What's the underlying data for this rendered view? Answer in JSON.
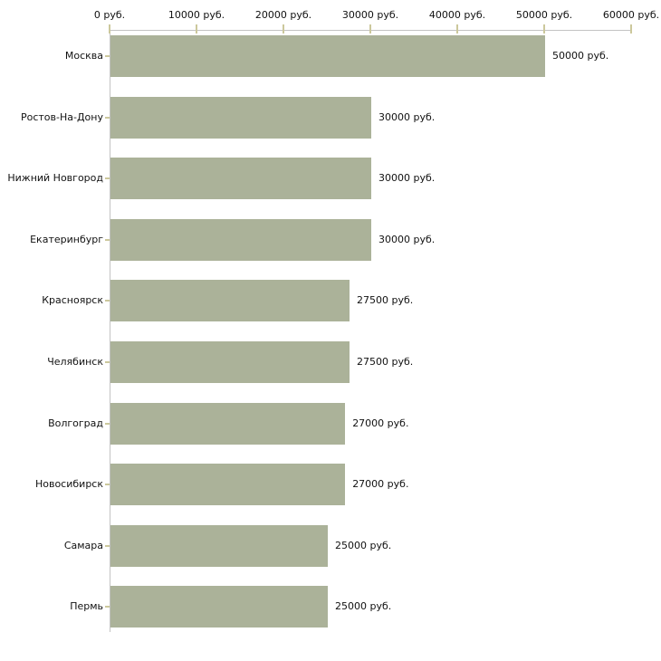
{
  "chart_data": {
    "type": "bar",
    "orientation": "horizontal",
    "title": "",
    "unit": "руб.",
    "categories": [
      "Москва",
      "Ростов-На-Дону",
      "Нижний Новгород",
      "Екатеринбург",
      "Красноярск",
      "Челябинск",
      "Волгоград",
      "Новосибирск",
      "Самара",
      "Пермь"
    ],
    "values": [
      50000,
      30000,
      30000,
      30000,
      27500,
      27500,
      27000,
      27000,
      25000,
      25000
    ],
    "value_labels": [
      "50000 руб.",
      "30000 руб.",
      "30000 руб.",
      "30000 руб.",
      "27500 руб.",
      "27500 руб.",
      "27000 руб.",
      "27000 руб.",
      "25000 руб.",
      "25000 руб."
    ],
    "x_axis": {
      "min": 0,
      "max": 60000,
      "tick_step": 10000,
      "tick_values": [
        0,
        10000,
        20000,
        30000,
        40000,
        50000,
        60000
      ],
      "tick_labels": [
        "0 руб.",
        "10000 руб.",
        "20000 руб.",
        "30000 руб.",
        "40000 руб.",
        "50000 руб.",
        "60000 руб."
      ]
    },
    "grid": false,
    "legend": null,
    "colors": {
      "bar": "#abb299",
      "axis_line": "#c3c3c3",
      "tick_mark": "#ccc89c",
      "text": "#111111",
      "background": "#ffffff"
    }
  }
}
